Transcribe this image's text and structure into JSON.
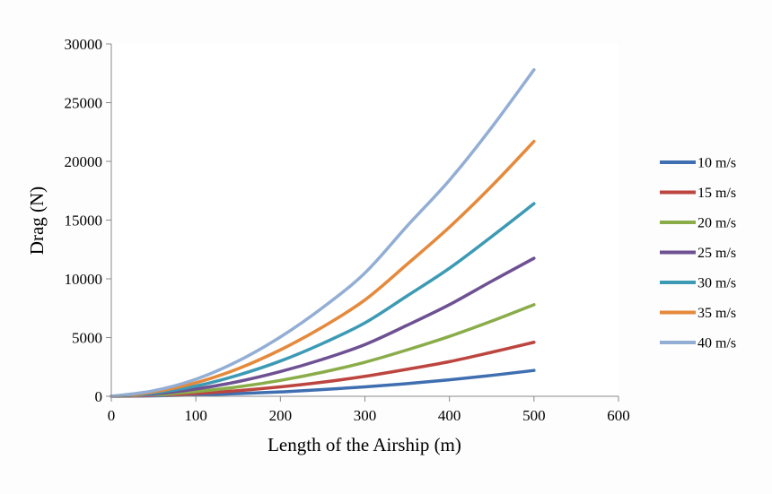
{
  "chart_data": {
    "type": "line",
    "xlabel": "Length of the Airship (m)",
    "ylabel": "Drag (N)",
    "xlim": [
      0,
      600
    ],
    "ylim": [
      0,
      30000
    ],
    "x_ticks": [
      0,
      100,
      200,
      300,
      400,
      500,
      600
    ],
    "y_ticks": [
      0,
      5000,
      10000,
      15000,
      20000,
      25000,
      30000
    ],
    "x_tick_labels": [
      "0",
      "100",
      "200",
      "300",
      "400",
      "500",
      "600"
    ],
    "y_tick_labels": [
      "0",
      "5000",
      "10000",
      "15000",
      "20000",
      "25000",
      "30000"
    ],
    "grid": false,
    "legend_position": "right",
    "x": [
      0,
      50,
      100,
      150,
      200,
      250,
      300,
      350,
      400,
      450,
      500
    ],
    "series": [
      {
        "name": "10 m/s",
        "color": "#3f6fb0",
        "values": [
          0,
          40,
          110,
          230,
          370,
          570,
          800,
          1080,
          1400,
          1780,
          2200
        ]
      },
      {
        "name": "15 m/s",
        "color": "#bd4540",
        "values": [
          0,
          80,
          240,
          480,
          800,
          1200,
          1700,
          2300,
          2950,
          3750,
          4600
        ]
      },
      {
        "name": "20 m/s",
        "color": "#8aad4a",
        "values": [
          0,
          130,
          400,
          800,
          1350,
          2050,
          2900,
          3950,
          5100,
          6400,
          7800
        ]
      },
      {
        "name": "25 m/s",
        "color": "#6e5192",
        "values": [
          0,
          200,
          620,
          1250,
          2100,
          3150,
          4400,
          6050,
          7800,
          9800,
          11750
        ]
      },
      {
        "name": "30 m/s",
        "color": "#3c9ab4",
        "values": [
          0,
          280,
          870,
          1800,
          3000,
          4500,
          6250,
          8550,
          10900,
          13600,
          16400
        ]
      },
      {
        "name": "35 m/s",
        "color": "#e5893b",
        "values": [
          0,
          370,
          1150,
          2350,
          3950,
          5900,
          8200,
          11250,
          14400,
          17900,
          21700
        ]
      },
      {
        "name": "40 m/s",
        "color": "#93aed4",
        "values": [
          0,
          470,
          1450,
          3000,
          5050,
          7550,
          10500,
          14500,
          18400,
          22900,
          27800
        ]
      }
    ]
  }
}
